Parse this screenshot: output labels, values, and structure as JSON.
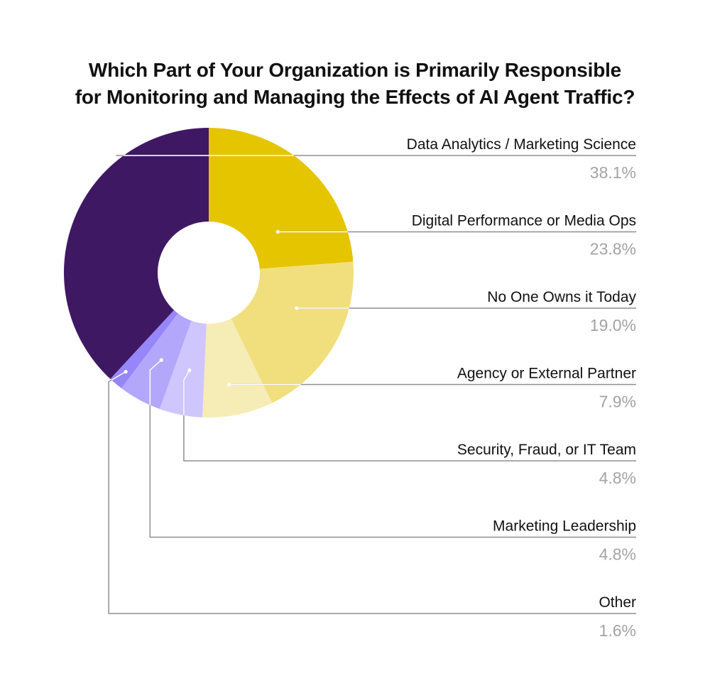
{
  "title": {
    "line1": "Which Part of Your Organization is Primarily Responsible",
    "line2": "for Monitoring and Managing the Effects of AI Agent Traffic?"
  },
  "chart_data": {
    "type": "pie",
    "variant": "donut",
    "title": "Which Part of Your Organization is Primarily Responsible for Monitoring and Managing the Effects of AI Agent Traffic?",
    "unit": "%",
    "legend": "right, leader lines",
    "slices": [
      {
        "label": "Data Analytics / Marketing Science",
        "value": 38.1,
        "value_label": "38.1%",
        "color": "#3f1864"
      },
      {
        "label": "Digital Performance or Media Ops",
        "value": 23.8,
        "value_label": "23.8%",
        "color": "#e5c400"
      },
      {
        "label": "No One Owns it Today",
        "value": 19.0,
        "value_label": "19.0%",
        "color": "#f1df7e"
      },
      {
        "label": "Agency or External Partner",
        "value": 7.9,
        "value_label": "7.9%",
        "color": "#f6ecb5"
      },
      {
        "label": "Security, Fraud, or IT Team",
        "value": 4.8,
        "value_label": "4.8%",
        "color": "#cec6fd"
      },
      {
        "label": "Marketing Leadership",
        "value": 4.8,
        "value_label": "4.8%",
        "color": "#b3a7fc"
      },
      {
        "label": "Other",
        "value": 1.6,
        "value_label": "1.6%",
        "color": "#9786fa"
      }
    ]
  }
}
